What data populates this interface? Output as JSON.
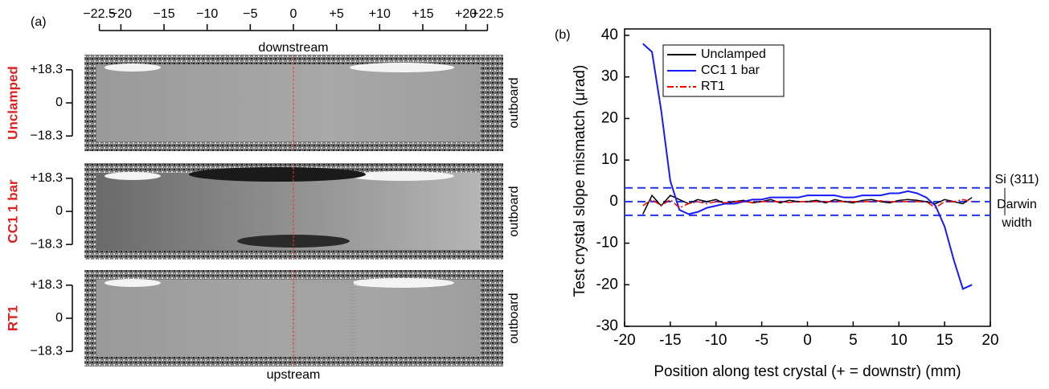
{
  "panel_a": {
    "label": "(a)",
    "top_label": "downstream",
    "bottom_label": "upstream",
    "xticks": [
      {
        "value": -22.5,
        "label": "−22.5"
      },
      {
        "value": -20,
        "label": "−20"
      },
      {
        "value": -15,
        "label": "−15"
      },
      {
        "value": -10,
        "label": "−10"
      },
      {
        "value": -5,
        "label": "−5"
      },
      0,
      {
        "value": 5,
        "label": "+5"
      },
      {
        "value": 10,
        "label": "+10"
      },
      {
        "value": 15,
        "label": "+15"
      },
      {
        "value": 20,
        "label": "+20"
      },
      {
        "value": 22.5,
        "label": "+22.5"
      }
    ],
    "rows": [
      {
        "label": "Unclamped",
        "side_label": "outboard",
        "yticks": [
          {
            "value": 18.3,
            "label": "+18.3"
          },
          0,
          {
            "value": -18.3,
            "label": "−18.3"
          }
        ]
      },
      {
        "label": "CC1 1 bar",
        "side_label": "outboard",
        "yticks": [
          {
            "value": 18.3,
            "label": "+18.3"
          },
          0,
          {
            "value": -18.3,
            "label": "−18.3"
          }
        ]
      },
      {
        "label": "RT1",
        "side_label": "outboard",
        "yticks": [
          {
            "value": 18.3,
            "label": "+18.3"
          },
          0,
          {
            "value": -18.3,
            "label": "−18.3"
          }
        ]
      }
    ]
  },
  "chart_data": {
    "type": "line",
    "panel_label": "(b)",
    "x_label": "Position along test crystal (+ = downstr) (mm)",
    "y_label": "Test crystal slope mismatch (μrad)",
    "xlim": [
      -20,
      20
    ],
    "xticks": [
      -20,
      -15,
      -10,
      -5,
      0,
      5,
      10,
      15,
      20
    ],
    "ylim": [
      -30,
      40
    ],
    "yticks": [
      -30,
      -20,
      -10,
      0,
      10,
      20,
      30,
      40
    ],
    "legend": "top-left",
    "hlines": [
      3.3,
      0,
      -3.3
    ],
    "hline_color": "#2233ee",
    "annotations": [
      "Si (311)",
      "Darwin",
      "width"
    ],
    "x": [
      -18,
      -17,
      -16,
      -15,
      -14,
      -13,
      -12,
      -11,
      -10,
      -9,
      -8,
      -7,
      -6,
      -5,
      -4,
      -3,
      -2,
      -1,
      0,
      1,
      2,
      3,
      4,
      5,
      6,
      7,
      8,
      9,
      10,
      11,
      12,
      13,
      14,
      15,
      16,
      17,
      18
    ],
    "series": [
      {
        "name": "Unclamped",
        "color": "#000000",
        "values": [
          -3,
          1.5,
          -1,
          1.5,
          0.5,
          -0.5,
          0.5,
          0,
          0.5,
          -0.5,
          0,
          0.3,
          -0.3,
          0,
          0.5,
          -0.3,
          0.3,
          0,
          0,
          0.3,
          -0.3,
          0.5,
          0,
          -0.3,
          0.3,
          0.5,
          0,
          -0.3,
          0.3,
          0.5,
          0.3,
          0,
          -0.5,
          0.5,
          0,
          -0.5,
          1
        ]
      },
      {
        "name": "CC1 1 bar",
        "color": "#1a1aff",
        "values": [
          38,
          36,
          22,
          5,
          -2,
          -3,
          -2.5,
          -1.5,
          -1,
          -0.5,
          -0.5,
          0,
          0.5,
          0.5,
          1,
          1,
          1,
          1,
          1.5,
          1.5,
          1.5,
          1.5,
          1,
          1,
          1.5,
          1.5,
          1.5,
          2,
          2,
          2.5,
          2,
          1,
          -1,
          -6,
          -14,
          -21,
          -20
        ]
      },
      {
        "name": "RT1",
        "color": "#ff0000",
        "values": [
          -1,
          0.5,
          -1,
          0.5,
          -1.5,
          -0.5,
          0,
          -0.5,
          0,
          -0.3,
          0,
          0,
          -0.2,
          0,
          0,
          0,
          -0.2,
          0,
          0,
          0,
          0,
          0,
          0,
          0,
          0,
          0,
          0.2,
          0,
          0,
          0,
          0,
          0,
          -1.5,
          0,
          0,
          0.5,
          0
        ]
      }
    ]
  }
}
